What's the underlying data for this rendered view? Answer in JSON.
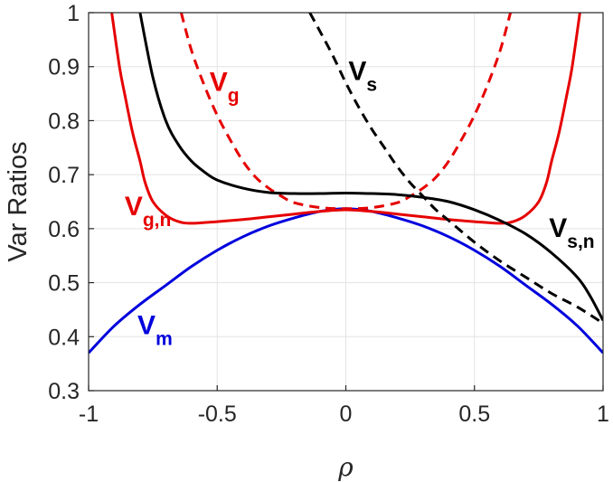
{
  "chart_data": {
    "type": "line",
    "title": "",
    "xlabel": "ρ",
    "ylabel": "Var Ratios",
    "xlim": [
      -1,
      1
    ],
    "ylim": [
      0.3,
      1
    ],
    "xticks": [
      -1,
      -0.5,
      0,
      0.5,
      1
    ],
    "xtick_labels": [
      "-1",
      "-0.5",
      "0",
      "0.5",
      "1"
    ],
    "yticks": [
      0.3,
      0.4,
      0.5,
      0.6,
      0.7,
      0.8,
      0.9,
      1
    ],
    "ytick_labels": [
      "0.3",
      "0.4",
      "0.5",
      "0.6",
      "0.7",
      "0.8",
      "0.9",
      "1"
    ],
    "grid": true,
    "legend": "none",
    "series": [
      {
        "name": "V_m",
        "color": "#0000dd",
        "style": "solid",
        "points": [
          [
            -1,
            0.37
          ],
          [
            -0.9,
            0.42
          ],
          [
            -0.8,
            0.46
          ],
          [
            -0.7,
            0.495
          ],
          [
            -0.6,
            0.53
          ],
          [
            -0.5,
            0.56
          ],
          [
            -0.4,
            0.585
          ],
          [
            -0.3,
            0.605
          ],
          [
            -0.2,
            0.62
          ],
          [
            -0.1,
            0.632
          ],
          [
            0,
            0.637
          ],
          [
            0.1,
            0.632
          ],
          [
            0.2,
            0.62
          ],
          [
            0.3,
            0.605
          ],
          [
            0.4,
            0.585
          ],
          [
            0.5,
            0.56
          ],
          [
            0.6,
            0.53
          ],
          [
            0.7,
            0.495
          ],
          [
            0.8,
            0.46
          ],
          [
            0.9,
            0.42
          ],
          [
            1,
            0.37
          ]
        ]
      },
      {
        "name": "V_g,n",
        "color": "#e60000",
        "style": "solid",
        "points": [
          [
            -0.91,
            1
          ],
          [
            -0.88,
            0.9
          ],
          [
            -0.86,
            0.85
          ],
          [
            -0.83,
            0.78
          ],
          [
            -0.8,
            0.725
          ],
          [
            -0.78,
            0.685
          ],
          [
            -0.75,
            0.65
          ],
          [
            -0.7,
            0.625
          ],
          [
            -0.65,
            0.613
          ],
          [
            -0.6,
            0.61
          ],
          [
            -0.5,
            0.613
          ],
          [
            -0.4,
            0.617
          ],
          [
            -0.3,
            0.622
          ],
          [
            -0.2,
            0.627
          ],
          [
            -0.1,
            0.632
          ],
          [
            0,
            0.635
          ],
          [
            0.1,
            0.632
          ],
          [
            0.2,
            0.627
          ],
          [
            0.3,
            0.622
          ],
          [
            0.4,
            0.617
          ],
          [
            0.5,
            0.613
          ],
          [
            0.6,
            0.61
          ],
          [
            0.65,
            0.613
          ],
          [
            0.7,
            0.625
          ],
          [
            0.75,
            0.65
          ],
          [
            0.78,
            0.685
          ],
          [
            0.8,
            0.725
          ],
          [
            0.83,
            0.78
          ],
          [
            0.86,
            0.85
          ],
          [
            0.88,
            0.9
          ],
          [
            0.91,
            1
          ]
        ]
      },
      {
        "name": "V_g",
        "color": "#e60000",
        "style": "dashed",
        "points": [
          [
            -0.64,
            1
          ],
          [
            -0.6,
            0.93
          ],
          [
            -0.55,
            0.865
          ],
          [
            -0.5,
            0.81
          ],
          [
            -0.45,
            0.765
          ],
          [
            -0.4,
            0.725
          ],
          [
            -0.35,
            0.695
          ],
          [
            -0.3,
            0.675
          ],
          [
            -0.25,
            0.66
          ],
          [
            -0.2,
            0.648
          ],
          [
            -0.1,
            0.639
          ],
          [
            0,
            0.637
          ],
          [
            0.1,
            0.639
          ],
          [
            0.2,
            0.648
          ],
          [
            0.25,
            0.66
          ],
          [
            0.3,
            0.675
          ],
          [
            0.35,
            0.695
          ],
          [
            0.4,
            0.725
          ],
          [
            0.45,
            0.765
          ],
          [
            0.5,
            0.81
          ],
          [
            0.55,
            0.865
          ],
          [
            0.6,
            0.93
          ],
          [
            0.64,
            1
          ]
        ]
      },
      {
        "name": "V_s,n",
        "color": "#000000",
        "style": "solid",
        "points": [
          [
            -0.8,
            1
          ],
          [
            -0.75,
            0.88
          ],
          [
            -0.7,
            0.8
          ],
          [
            -0.65,
            0.755
          ],
          [
            -0.6,
            0.725
          ],
          [
            -0.55,
            0.705
          ],
          [
            -0.5,
            0.69
          ],
          [
            -0.4,
            0.675
          ],
          [
            -0.3,
            0.667
          ],
          [
            -0.2,
            0.665
          ],
          [
            -0.1,
            0.665
          ],
          [
            0,
            0.666
          ],
          [
            0.1,
            0.665
          ],
          [
            0.2,
            0.663
          ],
          [
            0.3,
            0.658
          ],
          [
            0.4,
            0.65
          ],
          [
            0.5,
            0.635
          ],
          [
            0.6,
            0.615
          ],
          [
            0.7,
            0.59
          ],
          [
            0.8,
            0.555
          ],
          [
            0.9,
            0.51
          ],
          [
            0.95,
            0.475
          ],
          [
            1,
            0.43
          ]
        ]
      },
      {
        "name": "V_s",
        "color": "#000000",
        "style": "dashed",
        "points": [
          [
            -0.14,
            1
          ],
          [
            -0.1,
            0.965
          ],
          [
            -0.05,
            0.92
          ],
          [
            0,
            0.87
          ],
          [
            0.05,
            0.825
          ],
          [
            0.1,
            0.785
          ],
          [
            0.15,
            0.75
          ],
          [
            0.2,
            0.715
          ],
          [
            0.25,
            0.685
          ],
          [
            0.3,
            0.66
          ],
          [
            0.35,
            0.635
          ],
          [
            0.4,
            0.615
          ],
          [
            0.5,
            0.575
          ],
          [
            0.6,
            0.54
          ],
          [
            0.7,
            0.51
          ],
          [
            0.8,
            0.48
          ],
          [
            0.9,
            0.455
          ],
          [
            1,
            0.425
          ]
        ]
      }
    ],
    "annotations": [
      {
        "id": "vs",
        "base": "V",
        "sub": "s",
        "color": "#000000",
        "x": 0.01,
        "y": 0.875
      },
      {
        "id": "vg",
        "base": "V",
        "sub": "g",
        "color": "#e60000",
        "x": -0.53,
        "y": 0.855
      },
      {
        "id": "vgn",
        "base": "V",
        "sub": "g,n",
        "color": "#e60000",
        "x": -0.86,
        "y": 0.625
      },
      {
        "id": "vsn",
        "base": "V",
        "sub": "s,n",
        "color": "#000000",
        "x": 0.79,
        "y": 0.585
      },
      {
        "id": "vm",
        "base": "V",
        "sub": "m",
        "color": "#0000dd",
        "x": -0.81,
        "y": 0.405
      }
    ]
  }
}
